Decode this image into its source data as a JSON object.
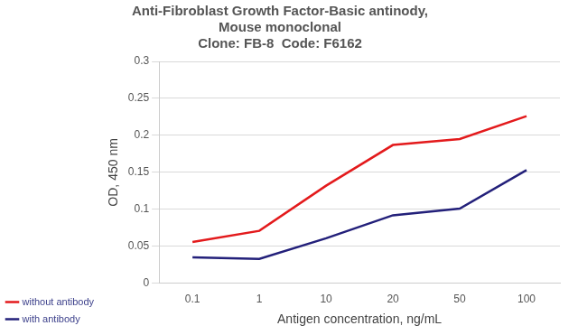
{
  "chart_data": {
    "type": "line",
    "title": [
      "Anti-Fibroblast Growth Factor-Basic antinody,",
      "Mouse monoclonal",
      "Clone: FB-8  Code: F6162"
    ],
    "x_label": "Antigen concentration, ng/mL",
    "y_label": "OD, 450 nm",
    "categories": [
      "0.1",
      "1",
      "10",
      "20",
      "50",
      "100"
    ],
    "series": [
      {
        "name": "without antibody",
        "color": "#e31a1c",
        "values": [
          0.056,
          0.071,
          0.132,
          0.187,
          0.195,
          0.226
        ]
      },
      {
        "name": "with antibody",
        "color": "#23207a",
        "values": [
          0.035,
          0.033,
          0.061,
          0.092,
          0.101,
          0.153
        ]
      }
    ],
    "ylim": [
      0,
      0.3
    ],
    "yticks": [
      0,
      0.05,
      0.1,
      0.15,
      0.2,
      0.25,
      0.3
    ],
    "grid": true,
    "legend": "left"
  }
}
